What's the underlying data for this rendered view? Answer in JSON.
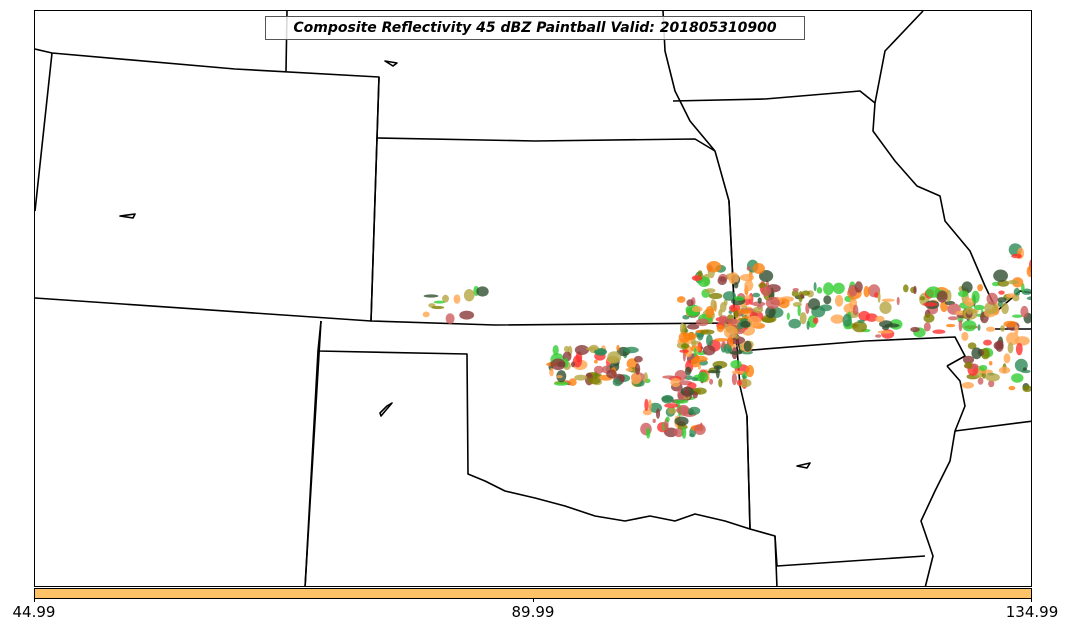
{
  "map": {
    "title": "Composite Reflectivity 45 dBZ Paintball Valid: 201805310900",
    "colors": {
      "boundary": "#000000",
      "paintball_palette": [
        "#8b3a3a",
        "#2f4f2f",
        "#ff7f0e",
        "#ffa54f",
        "#32cd32",
        "#ff3030",
        "#808000",
        "#b5a642",
        "#2e8b57",
        "#cd5c5c"
      ]
    }
  },
  "colorbar": {
    "color": "#ffc266",
    "ticks": [
      "44.99",
      "89.99",
      "134.99"
    ]
  }
}
